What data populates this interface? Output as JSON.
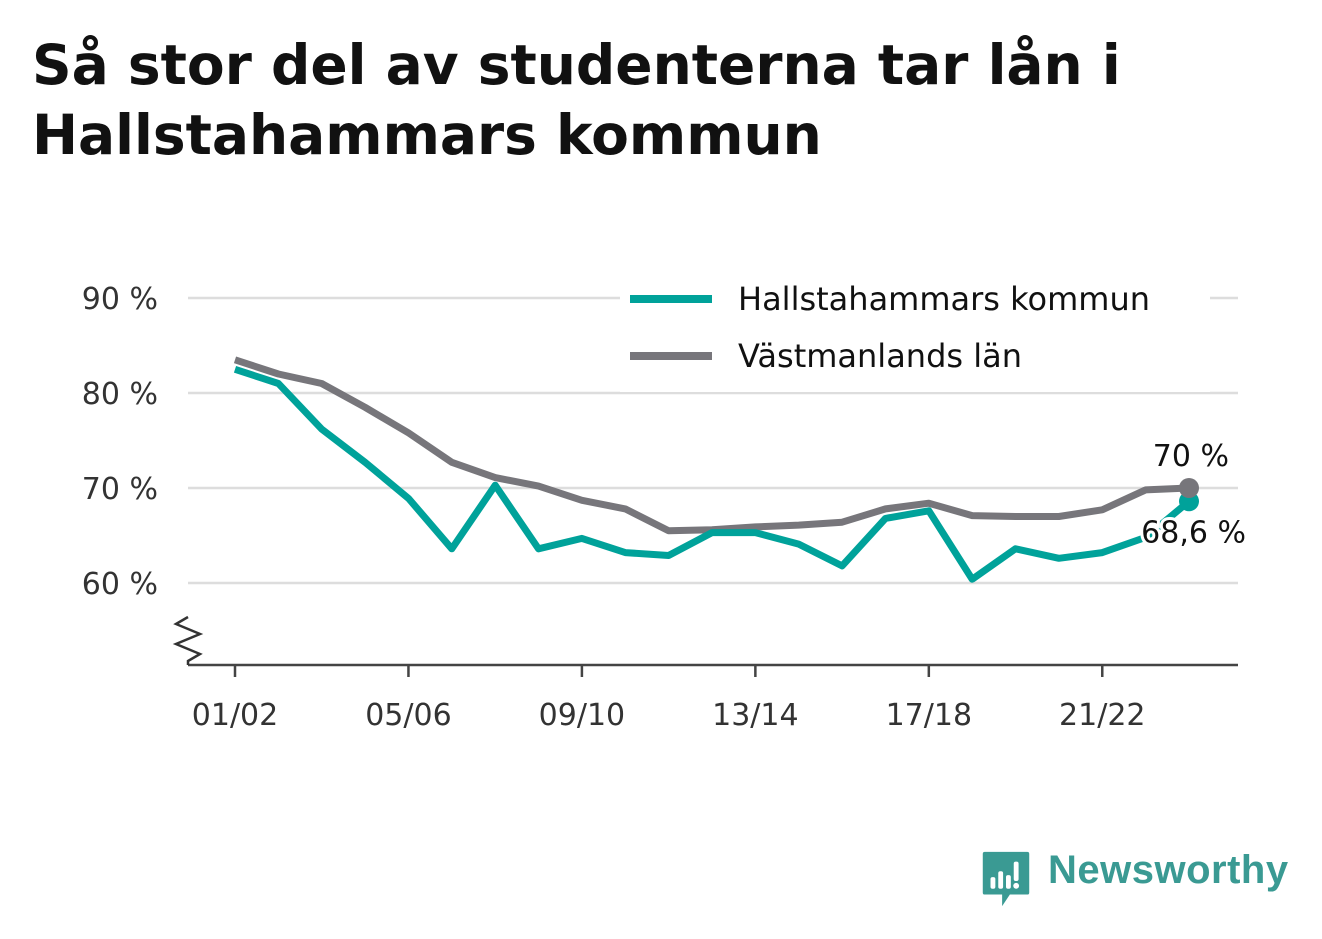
{
  "title": "Så stor del av studenterna tar lån i Hallstahammars kommun",
  "brand": {
    "name": "Newsworthy",
    "color": "#3a9a93"
  },
  "chart_data": {
    "type": "line",
    "x": [
      "01/02",
      "02/03",
      "03/04",
      "04/05",
      "05/06",
      "06/07",
      "07/08",
      "08/09",
      "09/10",
      "10/11",
      "11/12",
      "12/13",
      "13/14",
      "14/15",
      "15/16",
      "16/17",
      "17/18",
      "18/19",
      "19/20",
      "20/21",
      "21/22",
      "22/23",
      "23/24"
    ],
    "x_tick_labels": [
      "01/02",
      "05/06",
      "09/10",
      "13/14",
      "17/18",
      "21/22"
    ],
    "y_ticks": [
      60,
      70,
      80,
      90
    ],
    "y_tick_labels": [
      "60 %",
      "70 %",
      "80 %",
      "90 %"
    ],
    "ylim": [
      51.5,
      92
    ],
    "y_axis_break": true,
    "grid": true,
    "legend_position": "top-right",
    "series": [
      {
        "name": "Hallstahammars kommun",
        "color": "#00a29a",
        "values": [
          82.5,
          81.0,
          76.2,
          72.7,
          68.9,
          63.6,
          70.3,
          63.6,
          64.7,
          63.2,
          62.9,
          65.3,
          65.3,
          64.1,
          61.8,
          66.8,
          67.6,
          60.4,
          63.6,
          62.6,
          63.2,
          64.8,
          68.6
        ],
        "end_label": "68,6 %"
      },
      {
        "name": "Västmanlands län",
        "color": "#77767b",
        "values": [
          83.5,
          82.0,
          81.0,
          78.5,
          75.8,
          72.7,
          71.1,
          70.2,
          68.7,
          67.8,
          65.5,
          65.6,
          65.9,
          66.1,
          66.4,
          67.8,
          68.4,
          67.1,
          67.0,
          67.0,
          67.7,
          69.8,
          70.0
        ],
        "end_label": "70 %"
      }
    ]
  }
}
